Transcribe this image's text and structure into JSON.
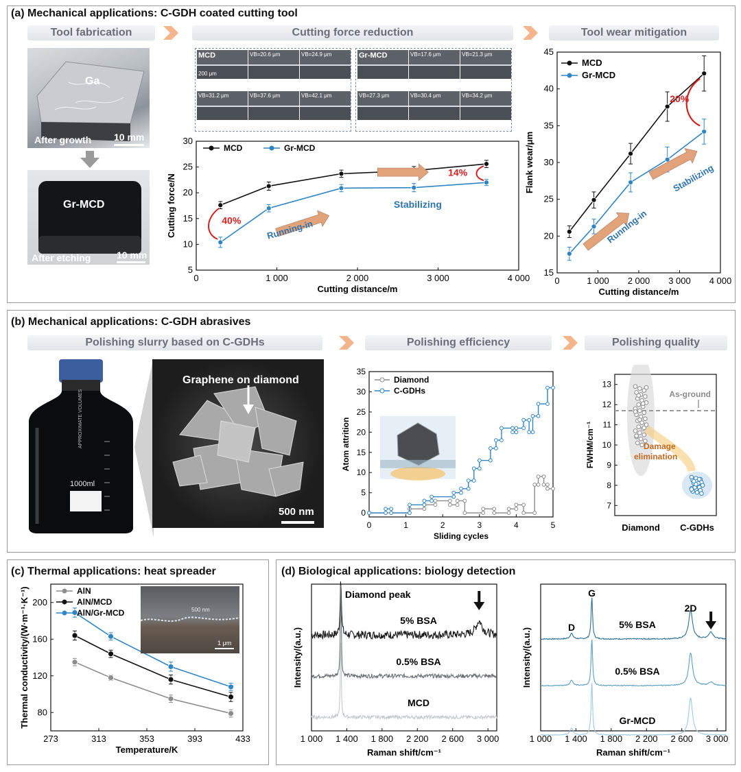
{
  "panel_a": {
    "title": "(a) Mechanical applications: C-GDH coated cutting tool",
    "headers": [
      "Tool fabrication",
      "Cutting force reduction",
      "Tool wear mitigation"
    ],
    "photo_top": {
      "label": "Ga",
      "caption": "After growth",
      "scale": "10 mm"
    },
    "photo_bottom": {
      "label": "Gr-MCD",
      "caption": "After etching",
      "scale": "10 mm"
    },
    "micro_mcd": {
      "group": "MCD",
      "scale": "200 μm",
      "labels": [
        "VB=20.6 μm",
        "VB=24.9 μm",
        "VB=31.2 μm",
        "VB=37.6 μm",
        "VB=42.1 μm"
      ]
    },
    "micro_gr": {
      "group": "Gr-MCD",
      "labels": [
        "VB=17.6 μm",
        "VB=21.3 μm",
        "VB=27.3 μm",
        "VB=30.4 μm",
        "VB=34.2 μm"
      ]
    }
  },
  "panel_b": {
    "title": "(b) Mechanical applications: C-GDH abrasives",
    "headers": [
      "Polishing slurry based on C-GDHs",
      "Polishing efficiency",
      "Polishing quality"
    ],
    "bottle_label": "1000ml",
    "bottle_text": "APPROXIMATE VOLUMES",
    "sem_label": "Graphene on diamond",
    "sem_scale": "500 nm"
  },
  "panel_c": {
    "title": "(c) Thermal applications: heat spreader",
    "inset_scale": "1 μm",
    "inset_label": "500 nm"
  },
  "panel_d": {
    "title": "(d) Biological applications: biology detection"
  },
  "chart_data": [
    {
      "id": "cutting_force",
      "type": "line",
      "xlabel": "Cutting distance/m",
      "ylabel": "Cutting force/N",
      "xlim": [
        0,
        4000
      ],
      "ylim": [
        5,
        30
      ],
      "xticks": [
        "0",
        "1 000",
        "2 000",
        "3 000",
        "4 000"
      ],
      "yticks": [
        "5",
        "10",
        "15",
        "20",
        "25",
        "30"
      ],
      "legend": "top-left",
      "series": [
        {
          "name": "MCD",
          "color": "#111111",
          "x": [
            300,
            900,
            1800,
            2700,
            3600
          ],
          "y": [
            17.6,
            21.3,
            23.7,
            24.3,
            25.6
          ],
          "err": [
            0.7,
            0.8,
            0.7,
            0.8,
            0.7
          ]
        },
        {
          "name": "Gr-MCD",
          "color": "#2f84c4",
          "x": [
            300,
            900,
            1800,
            2700,
            3600
          ],
          "y": [
            10.4,
            17.0,
            20.9,
            21.0,
            22.0
          ],
          "err": [
            1.0,
            0.7,
            0.7,
            0.8,
            0.6
          ]
        }
      ],
      "annotations": [
        {
          "text": "40%",
          "x": 300,
          "y": 14
        },
        {
          "text": "14%",
          "x": 3550,
          "y": 23.8
        },
        {
          "text": "Running-in",
          "x": 1200,
          "y": 13.5
        },
        {
          "text": "Stabilizing",
          "x": 2450,
          "y": 19.5
        }
      ]
    },
    {
      "id": "flank_wear",
      "type": "line",
      "xlabel": "Cutting distance/m",
      "ylabel": "Flank wear/μm",
      "xlim": [
        0,
        4000
      ],
      "ylim": [
        15,
        45
      ],
      "xticks": [
        "0",
        "1 000",
        "2 000",
        "3 000",
        "4 000"
      ],
      "yticks": [
        "15",
        "20",
        "25",
        "30",
        "35",
        "40",
        "45"
      ],
      "legend": "top-left",
      "series": [
        {
          "name": "MCD",
          "color": "#111111",
          "x": [
            300,
            900,
            1800,
            2700,
            3600
          ],
          "y": [
            20.6,
            24.9,
            31.2,
            37.6,
            42.1
          ],
          "err": [
            0.8,
            1.1,
            1.4,
            2.0,
            2.4
          ]
        },
        {
          "name": "Gr-MCD",
          "color": "#2f84c4",
          "x": [
            300,
            900,
            1800,
            2700,
            3600
          ],
          "y": [
            17.6,
            21.3,
            27.3,
            30.4,
            34.2
          ],
          "err": [
            0.9,
            1.0,
            1.3,
            1.7,
            1.7
          ]
        }
      ],
      "annotations": [
        {
          "text": "20%",
          "x": 3550,
          "y": 38.2
        },
        {
          "text": "Running-in",
          "x": 1300,
          "y": 19
        },
        {
          "text": "Stabilizing",
          "x": 2900,
          "y": 26
        }
      ]
    },
    {
      "id": "atom_attrition",
      "type": "line",
      "xlabel": "Sliding cycles",
      "ylabel": "Atom attrition",
      "xlim": [
        0,
        5
      ],
      "ylim": [
        -1,
        35
      ],
      "xticks": [
        "0",
        "1",
        "2",
        "3",
        "4",
        "5"
      ],
      "yticks": [
        "0",
        "5",
        "10",
        "15",
        "20",
        "25",
        "30",
        "35"
      ],
      "legend": "top-left",
      "series": [
        {
          "name": "Diamond",
          "color": "#8c8c8c",
          "steps": [
            [
              0,
              0
            ],
            [
              1.1,
              0
            ],
            [
              1.1,
              1
            ],
            [
              1.5,
              1
            ],
            [
              1.5,
              2
            ],
            [
              1.8,
              2
            ],
            [
              1.8,
              3
            ],
            [
              2.2,
              3
            ],
            [
              2.2,
              2
            ],
            [
              2.4,
              2
            ],
            [
              2.4,
              3
            ],
            [
              2.6,
              3
            ],
            [
              2.6,
              0
            ],
            [
              3.1,
              0
            ],
            [
              3.1,
              1
            ],
            [
              3.4,
              1
            ],
            [
              3.4,
              0
            ],
            [
              3.8,
              0
            ],
            [
              3.8,
              1
            ],
            [
              4.0,
              1
            ],
            [
              4.0,
              2
            ],
            [
              4.2,
              2
            ],
            [
              4.2,
              0
            ],
            [
              4.5,
              0
            ],
            [
              4.5,
              7
            ],
            [
              4.6,
              7
            ],
            [
              4.6,
              9
            ],
            [
              4.75,
              9
            ],
            [
              4.75,
              7
            ],
            [
              4.85,
              7
            ],
            [
              4.85,
              6
            ],
            [
              5,
              6
            ]
          ]
        },
        {
          "name": "C-GDHs",
          "color": "#2f84c4",
          "steps": [
            [
              0,
              0
            ],
            [
              0.45,
              0
            ],
            [
              0.45,
              1
            ],
            [
              0.6,
              1
            ],
            [
              0.6,
              0
            ],
            [
              1.1,
              0
            ],
            [
              1.1,
              2
            ],
            [
              1.5,
              2
            ],
            [
              1.5,
              3
            ],
            [
              1.7,
              3
            ],
            [
              1.7,
              4
            ],
            [
              2.3,
              4
            ],
            [
              2.3,
              5
            ],
            [
              2.5,
              5
            ],
            [
              2.5,
              6
            ],
            [
              2.7,
              6
            ],
            [
              2.7,
              8
            ],
            [
              2.85,
              8
            ],
            [
              2.85,
              11
            ],
            [
              3.0,
              11
            ],
            [
              3.0,
              13
            ],
            [
              3.3,
              13
            ],
            [
              3.3,
              16
            ],
            [
              3.45,
              16
            ],
            [
              3.45,
              18
            ],
            [
              3.6,
              18
            ],
            [
              3.6,
              21
            ],
            [
              3.9,
              21
            ],
            [
              3.9,
              20
            ],
            [
              4.0,
              20
            ],
            [
              4.0,
              21
            ],
            [
              4.2,
              21
            ],
            [
              4.2,
              23
            ],
            [
              4.35,
              23
            ],
            [
              4.35,
              20
            ],
            [
              4.45,
              20
            ],
            [
              4.45,
              24
            ],
            [
              4.6,
              24
            ],
            [
              4.6,
              27
            ],
            [
              4.85,
              27
            ],
            [
              4.85,
              31
            ],
            [
              5,
              31
            ]
          ]
        }
      ]
    },
    {
      "id": "fwhm",
      "type": "scatter",
      "xlabel": "",
      "ylabel": "FWHM/cm⁻¹",
      "categories": [
        "Diamond",
        "C-GDHs"
      ],
      "ylim": [
        6.5,
        13.5
      ],
      "yticks": [
        "7",
        "8",
        "9",
        "10",
        "11",
        "12",
        "13"
      ],
      "reference_line": {
        "label": "As-ground",
        "y": 11.7
      },
      "annotations": [
        {
          "text": "Damage elimination"
        }
      ],
      "series": [
        {
          "name": "Diamond",
          "color": "#8c8c8c",
          "y": [
            12.9,
            12.8,
            12.7,
            12.6,
            12.5,
            12.4,
            12.3,
            12.2,
            12.1,
            12.0,
            11.9,
            11.8,
            11.7,
            11.6,
            11.5,
            11.4,
            11.3,
            11.2,
            11.1,
            11.0,
            10.9,
            10.8,
            10.7,
            10.6,
            10.5,
            10.4,
            10.3,
            10.2,
            10.1,
            10.0,
            12.85,
            12.45,
            12.05,
            11.65,
            11.25,
            10.85,
            10.45
          ]
        },
        {
          "name": "C-GDHs",
          "color": "#2f84c4",
          "y": [
            8.4,
            8.35,
            8.3,
            8.25,
            8.2,
            8.15,
            8.1,
            8.05,
            8.0,
            7.95,
            7.9,
            7.85,
            7.8,
            7.75,
            7.7,
            7.65,
            7.6,
            8.2,
            8.1,
            8.0,
            7.9,
            8.3,
            7.8,
            8.05
          ]
        }
      ]
    },
    {
      "id": "thermal",
      "type": "line",
      "xlabel": "Temperature/K",
      "ylabel": "Thermal conductivity/(W·m⁻¹·K⁻¹)",
      "xlim": [
        273,
        433
      ],
      "ylim": [
        60,
        220
      ],
      "xticks": [
        "273",
        "313",
        "353",
        "393",
        "433"
      ],
      "yticks": [
        "80",
        "120",
        "160",
        "200"
      ],
      "legend": "top-left",
      "series": [
        {
          "name": "AlN",
          "color": "#8c8c8c",
          "x": [
            293,
            323,
            373,
            423
          ],
          "y": [
            135,
            118,
            95,
            79
          ],
          "err": [
            4,
            3,
            4,
            4
          ]
        },
        {
          "name": "AlN/MCD",
          "color": "#111111",
          "x": [
            293,
            323,
            373,
            423
          ],
          "y": [
            164,
            144,
            116,
            97
          ],
          "err": [
            5,
            4,
            5,
            5
          ]
        },
        {
          "name": "AlN/Gr-MCD",
          "color": "#2f84c4",
          "x": [
            293,
            323,
            373,
            423
          ],
          "y": [
            189,
            163,
            130,
            108
          ],
          "err": [
            5,
            4,
            5,
            4
          ]
        }
      ]
    },
    {
      "id": "raman_left",
      "type": "line",
      "xlabel": "Raman shift/cm⁻¹",
      "ylabel": "Intensity/(a.u.)",
      "xlim": [
        1000,
        3100
      ],
      "xticks": [
        "1 000",
        "1 400",
        "1 800",
        "2 200",
        "2 600",
        "3 000"
      ],
      "annotations": [
        {
          "text": "Diamond peak",
          "x": 1332
        }
      ],
      "series": [
        {
          "name": "5% BSA",
          "color": "#1a1a1a"
        },
        {
          "name": "0.5% BSA",
          "color": "#6b7075"
        },
        {
          "name": "MCD",
          "color": "#c4c8cc"
        }
      ]
    },
    {
      "id": "raman_right",
      "type": "line",
      "xlabel": "Raman shift/cm⁻¹",
      "ylabel": "Intensity/(a.u.)",
      "xlim": [
        1000,
        3100
      ],
      "xticks": [
        "1 000",
        "1 400",
        "1 800",
        "2 200",
        "2 600",
        "3 000"
      ],
      "annotations": [
        {
          "text": "D",
          "x": 1350
        },
        {
          "text": "G",
          "x": 1580
        },
        {
          "text": "2D",
          "x": 2700
        }
      ],
      "series": [
        {
          "name": "5% BSA",
          "color": "#2a6f95"
        },
        {
          "name": "0.5% BSA",
          "color": "#5a9ec2"
        },
        {
          "name": "Gr-MCD",
          "color": "#9ccbe2"
        }
      ]
    }
  ]
}
